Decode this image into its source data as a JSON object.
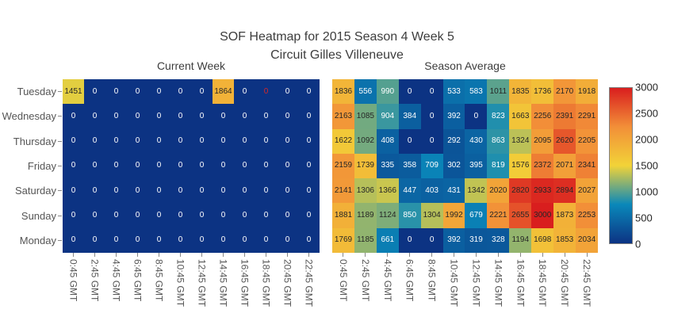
{
  "title": {
    "line1": "SOF Heatmap for 2015 Season 4 Week 5",
    "line2": "Circuit Gilles Villeneuve"
  },
  "chart_data": {
    "type": "heatmap",
    "zmin": 0,
    "zmax": 3000,
    "x_categories": [
      "0:45 GMT",
      "2:45 GMT",
      "4:45 GMT",
      "6:45 GMT",
      "8:45 GMT",
      "10:45 GMT",
      "12:45 GMT",
      "14:45 GMT",
      "16:45 GMT",
      "18:45 GMT",
      "20:45 GMT",
      "22:45 GMT"
    ],
    "y_categories": [
      "Tuesday",
      "Wednesday",
      "Thursday",
      "Friday",
      "Saturday",
      "Sunday",
      "Monday"
    ],
    "subplots": [
      {
        "title": "Current Week",
        "values": [
          [
            1451,
            0,
            0,
            0,
            0,
            0,
            0,
            1864,
            0,
            0,
            0,
            0
          ],
          [
            0,
            0,
            0,
            0,
            0,
            0,
            0,
            0,
            0,
            0,
            0,
            0
          ],
          [
            0,
            0,
            0,
            0,
            0,
            0,
            0,
            0,
            0,
            0,
            0,
            0
          ],
          [
            0,
            0,
            0,
            0,
            0,
            0,
            0,
            0,
            0,
            0,
            0,
            0
          ],
          [
            0,
            0,
            0,
            0,
            0,
            0,
            0,
            0,
            0,
            0,
            0,
            0
          ],
          [
            0,
            0,
            0,
            0,
            0,
            0,
            0,
            0,
            0,
            0,
            0,
            0
          ],
          [
            0,
            0,
            0,
            0,
            0,
            0,
            0,
            0,
            0,
            0,
            0,
            0
          ]
        ]
      },
      {
        "title": "Season Average",
        "values": [
          [
            1836,
            556,
            990,
            0,
            0,
            533,
            583,
            1011,
            1835,
            1736,
            2170,
            1918
          ],
          [
            2163,
            1085,
            904,
            384,
            0,
            392,
            0,
            823,
            1663,
            2256,
            2391,
            2291
          ],
          [
            1622,
            1092,
            408,
            0,
            0,
            292,
            430,
            863,
            1324,
            2095,
            2620,
            2205
          ],
          [
            2159,
            1739,
            335,
            358,
            709,
            302,
            395,
            819,
            1576,
            2372,
            2071,
            2341
          ],
          [
            2141,
            1306,
            1366,
            447,
            403,
            431,
            1342,
            2020,
            2820,
            2933,
            2894,
            2027
          ],
          [
            1881,
            1189,
            1124,
            850,
            1304,
            1992,
            679,
            2221,
            2655,
            3000,
            1873,
            2253
          ],
          [
            1769,
            1185,
            661,
            0,
            0,
            392,
            319,
            328,
            1194,
            1698,
            1853,
            2034
          ]
        ]
      }
    ],
    "colorscale": {
      "name": "Portland",
      "stops": [
        [
          0.0,
          [
            12,
            51,
            131
          ]
        ],
        [
          0.25,
          [
            10,
            136,
            186
          ]
        ],
        [
          0.5,
          [
            242,
            211,
            56
          ]
        ],
        [
          0.75,
          [
            242,
            143,
            56
          ]
        ],
        [
          1.0,
          [
            217,
            30,
            30
          ]
        ]
      ]
    },
    "colorbar": {
      "ticks": [
        0,
        500,
        1000,
        1500,
        2000,
        2500,
        3000
      ]
    },
    "annotation_style": {
      "dark_text": "#262626",
      "light_text": "#ffffff",
      "dark_text_threshold": 1000
    },
    "annotation_overrides": [
      {
        "subplot": 0,
        "row": 0,
        "col": 9,
        "color": "#d62728"
      }
    ],
    "legend_position": "right-colorbar",
    "grid": false
  }
}
